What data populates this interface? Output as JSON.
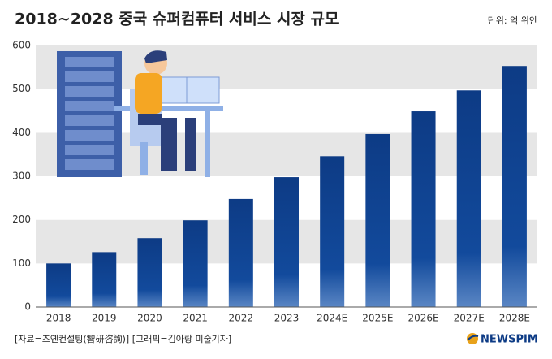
{
  "chart_data": {
    "type": "bar",
    "title": "2018~2028 중국 슈퍼컴퓨터 서비스 시장 규모",
    "unit": "단위: 억 위안",
    "categories": [
      "2018",
      "2019",
      "2020",
      "2021",
      "2022",
      "2023",
      "2024E",
      "2025E",
      "2026E",
      "2027E",
      "2028E"
    ],
    "values": [
      100,
      126,
      158,
      199,
      248,
      298,
      346,
      397,
      449,
      497,
      553
    ],
    "color": "#0d3b85",
    "ylim": [
      0,
      600
    ],
    "yticks": [
      0,
      100,
      200,
      300,
      400,
      500,
      600
    ],
    "banded_grid": true,
    "source": "[자료=즈옌컨설팅(智研咨詢)] [그래픽=김아랑 미술기자]",
    "brand": "NEWSPIM"
  }
}
